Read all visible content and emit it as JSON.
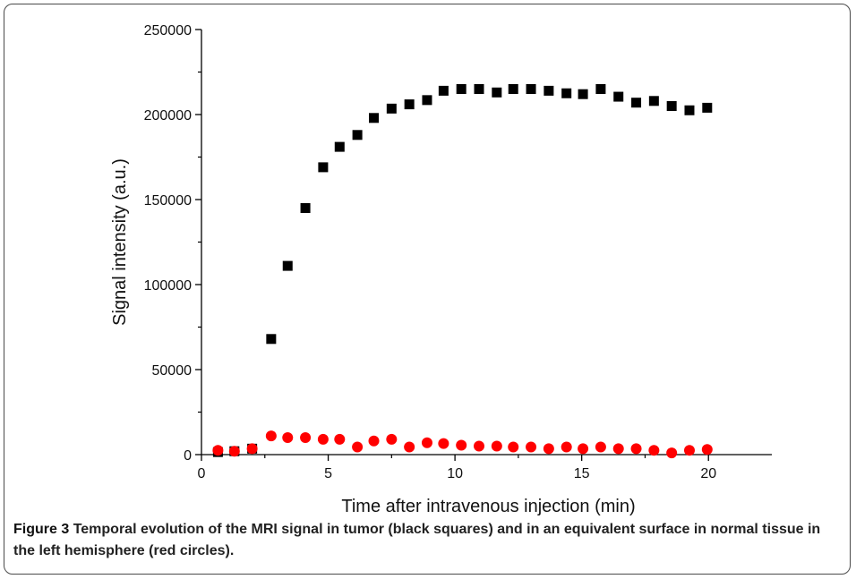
{
  "chart_data": {
    "type": "scatter",
    "xlabel": "Time after intravenous injection (min)",
    "ylabel": "Signal intensity (a.u.)",
    "xlim": [
      0,
      22.5
    ],
    "ylim": [
      0,
      250000
    ],
    "xticks": [
      0,
      5,
      10,
      15,
      20
    ],
    "yticks": [
      0,
      50000,
      100000,
      150000,
      200000,
      250000
    ],
    "grid": false,
    "series": [
      {
        "marker": "square",
        "color": "#000000",
        "points": [
          [
            0.65,
            1500
          ],
          [
            1.3,
            2000
          ],
          [
            2.0,
            3500
          ],
          [
            2.75,
            68000
          ],
          [
            3.4,
            111000
          ],
          [
            4.1,
            145000
          ],
          [
            4.8,
            169000
          ],
          [
            5.45,
            181000
          ],
          [
            6.15,
            188000
          ],
          [
            6.8,
            198000
          ],
          [
            7.5,
            203500
          ],
          [
            8.2,
            206000
          ],
          [
            8.9,
            208500
          ],
          [
            9.55,
            214000
          ],
          [
            10.25,
            215000
          ],
          [
            10.95,
            215000
          ],
          [
            11.65,
            213000
          ],
          [
            12.3,
            215000
          ],
          [
            13.0,
            215000
          ],
          [
            13.7,
            214000
          ],
          [
            14.4,
            212500
          ],
          [
            15.05,
            212000
          ],
          [
            15.75,
            215000
          ],
          [
            16.45,
            210500
          ],
          [
            17.15,
            207000
          ],
          [
            17.85,
            208000
          ],
          [
            18.55,
            205000
          ],
          [
            19.25,
            202500
          ],
          [
            19.95,
            204000
          ]
        ]
      },
      {
        "marker": "circle",
        "color": "#ff0000",
        "points": [
          [
            0.65,
            2500
          ],
          [
            1.3,
            2000
          ],
          [
            2.0,
            3500
          ],
          [
            2.75,
            11000
          ],
          [
            3.4,
            10000
          ],
          [
            4.1,
            10000
          ],
          [
            4.8,
            9000
          ],
          [
            5.45,
            9000
          ],
          [
            6.15,
            4500
          ],
          [
            6.8,
            8000
          ],
          [
            7.5,
            9000
          ],
          [
            8.2,
            4500
          ],
          [
            8.9,
            7000
          ],
          [
            9.55,
            6500
          ],
          [
            10.25,
            5500
          ],
          [
            10.95,
            5000
          ],
          [
            11.65,
            5000
          ],
          [
            12.3,
            4500
          ],
          [
            13.0,
            4500
          ],
          [
            13.7,
            3500
          ],
          [
            14.4,
            4500
          ],
          [
            15.05,
            3500
          ],
          [
            15.75,
            4500
          ],
          [
            16.45,
            3500
          ],
          [
            17.15,
            3500
          ],
          [
            17.85,
            2500
          ],
          [
            18.55,
            1000
          ],
          [
            19.25,
            2500
          ],
          [
            19.95,
            3000
          ]
        ]
      }
    ]
  },
  "caption": {
    "label": "Figure 3",
    "text": "Temporal evolution of the MRI signal in tumor (black squares) and in an equivalent surface in normal tissue in the left hemisphere (red circles)."
  }
}
